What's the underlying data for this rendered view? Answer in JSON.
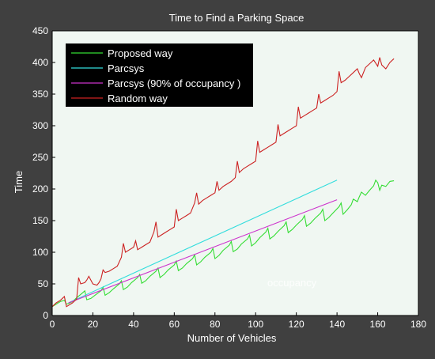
{
  "chart_data": {
    "type": "line",
    "title": "Time to Find a Parking Space",
    "xlabel": "Number of Vehicles",
    "ylabel": "Time",
    "xlim": [
      0,
      180
    ],
    "ylim": [
      0,
      450
    ],
    "xticks": [
      0,
      20,
      40,
      60,
      80,
      100,
      120,
      140,
      160,
      180
    ],
    "yticks": [
      0,
      50,
      100,
      150,
      200,
      250,
      300,
      350,
      400,
      450
    ],
    "grid": false,
    "legend_position": "top-left",
    "annotation": "occupancy",
    "colors": {
      "figure_background": "#404040",
      "plot_background": "#f0f7f2",
      "text": "#ffffff",
      "legend_background": "#000000"
    },
    "series": [
      {
        "name": "Proposed way",
        "color": "#33dd33",
        "x": [
          0,
          4,
          6,
          7,
          8,
          10,
          12,
          15,
          16,
          17,
          19,
          21,
          24,
          25,
          26,
          28,
          30,
          33,
          34,
          35,
          37,
          39,
          42,
          43,
          44,
          46,
          48,
          51,
          52,
          53,
          55,
          57,
          60,
          61,
          62,
          64,
          66,
          69,
          70,
          71,
          73,
          75,
          78,
          79,
          80,
          82,
          84,
          87,
          88,
          89,
          91,
          93,
          96,
          97,
          98,
          100,
          102,
          105,
          106,
          107,
          109,
          111,
          114,
          115,
          116,
          118,
          120,
          123,
          124,
          125,
          127,
          129,
          132,
          133,
          134,
          136,
          138,
          141,
          142,
          143,
          145,
          147,
          148,
          150,
          151,
          152,
          154,
          156,
          158,
          159,
          160,
          161,
          162,
          164,
          166,
          168
        ],
        "y": [
          14,
          22,
          24,
          18,
          19,
          22,
          28,
          36,
          39,
          25,
          27,
          32,
          39,
          45,
          32,
          36,
          42,
          50,
          55,
          41,
          45,
          52,
          60,
          65,
          51,
          55,
          62,
          70,
          75,
          60,
          65,
          72,
          80,
          86,
          71,
          75,
          82,
          90,
          96,
          80,
          85,
          92,
          100,
          106,
          90,
          95,
          103,
          111,
          117,
          101,
          105,
          113,
          121,
          127,
          110,
          115,
          123,
          132,
          138,
          121,
          126,
          133,
          142,
          148,
          131,
          136,
          143,
          152,
          158,
          141,
          146,
          153,
          162,
          168,
          150,
          155,
          162,
          172,
          178,
          160,
          167,
          175,
          184,
          180,
          188,
          195,
          190,
          198,
          205,
          214,
          210,
          198,
          206,
          204,
          212,
          213
        ]
      },
      {
        "name": "Parcsys",
        "color": "#33dddd",
        "x": [
          8,
          140
        ],
        "y": [
          20,
          214
        ]
      },
      {
        "name": "Parcsys (90% of occupancy )",
        "color": "#cc33cc",
        "x": [
          8,
          140
        ],
        "y": [
          20,
          183
        ]
      },
      {
        "name": "Random way",
        "color": "#cc2222",
        "x": [
          0,
          2,
          4,
          6,
          7,
          8,
          10,
          12,
          13,
          14,
          16,
          17,
          18,
          20,
          22,
          23,
          24,
          25,
          26,
          28,
          30,
          32,
          34,
          35,
          36,
          38,
          40,
          41,
          42,
          44,
          46,
          48,
          50,
          51,
          52,
          54,
          56,
          58,
          60,
          61,
          62,
          64,
          66,
          68,
          70,
          71,
          72,
          74,
          76,
          78,
          80,
          81,
          82,
          84,
          86,
          88,
          90,
          91,
          92,
          94,
          96,
          98,
          100,
          101,
          102,
          104,
          106,
          108,
          110,
          111,
          112,
          114,
          116,
          118,
          120,
          121,
          122,
          124,
          126,
          128,
          130,
          131,
          132,
          134,
          136,
          138,
          140,
          141,
          142,
          144,
          146,
          148,
          150,
          151,
          152,
          154,
          156,
          158,
          160,
          161,
          162,
          164,
          166,
          168
        ],
        "y": [
          14,
          20,
          24,
          30,
          14,
          16,
          20,
          26,
          60,
          50,
          52,
          56,
          62,
          50,
          48,
          52,
          58,
          72,
          68,
          70,
          74,
          78,
          92,
          114,
          100,
          104,
          108,
          118,
          104,
          108,
          112,
          116,
          132,
          148,
          124,
          128,
          132,
          136,
          140,
          168,
          150,
          154,
          158,
          162,
          178,
          194,
          176,
          182,
          186,
          190,
          194,
          212,
          198,
          204,
          208,
          212,
          218,
          244,
          226,
          232,
          236,
          240,
          244,
          276,
          258,
          262,
          266,
          270,
          274,
          302,
          284,
          288,
          292,
          296,
          300,
          330,
          312,
          316,
          320,
          324,
          328,
          350,
          336,
          340,
          344,
          348,
          354,
          386,
          368,
          372,
          378,
          384,
          390,
          382,
          376,
          392,
          398,
          404,
          394,
          408,
          396,
          390,
          400,
          406
        ]
      }
    ]
  }
}
